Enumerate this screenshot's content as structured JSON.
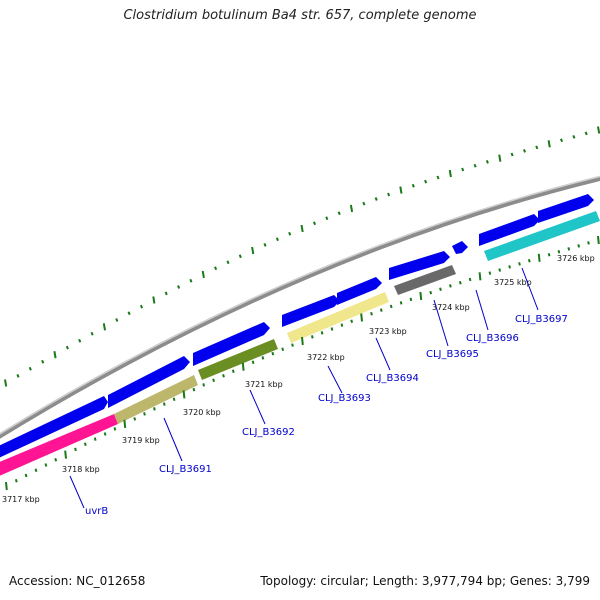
{
  "title": "Clostridium botulinum Ba4 str. 657, complete genome",
  "footer": {
    "accession": "Accession: NC_012658",
    "summary": "Topology: circular; Length: 3,977,794 bp; Genes: 3,799"
  },
  "colors": {
    "backbone": "#8c8c8c",
    "cds": "#0000ee",
    "gc_skew": "#1a7a1a",
    "label": "#0000cc"
  },
  "scale_ticks": [
    "3717 kbp",
    "3718 kbp",
    "3719 kbp",
    "3720 kbp",
    "3721 kbp",
    "3722 kbp",
    "3723 kbp",
    "3724 kbp",
    "3725 kbp",
    "3726 kbp"
  ],
  "genes": [
    {
      "label": "uvrB",
      "color": "#ff1493"
    },
    {
      "label": "CLJ_B3691",
      "color": "#bdb76b"
    },
    {
      "label": "CLJ_B3692",
      "color": "#6b8e23"
    },
    {
      "label": "CLJ_B3693",
      "color": "#f0e68c"
    },
    {
      "label": "CLJ_B3694",
      "color": "#f0e68c"
    },
    {
      "label": "CLJ_B3695",
      "color": "#696969"
    },
    {
      "label": "CLJ_B3696",
      "color": "#0000ee"
    },
    {
      "label": "CLJ_B3697",
      "color": "#20c5c8"
    }
  ]
}
